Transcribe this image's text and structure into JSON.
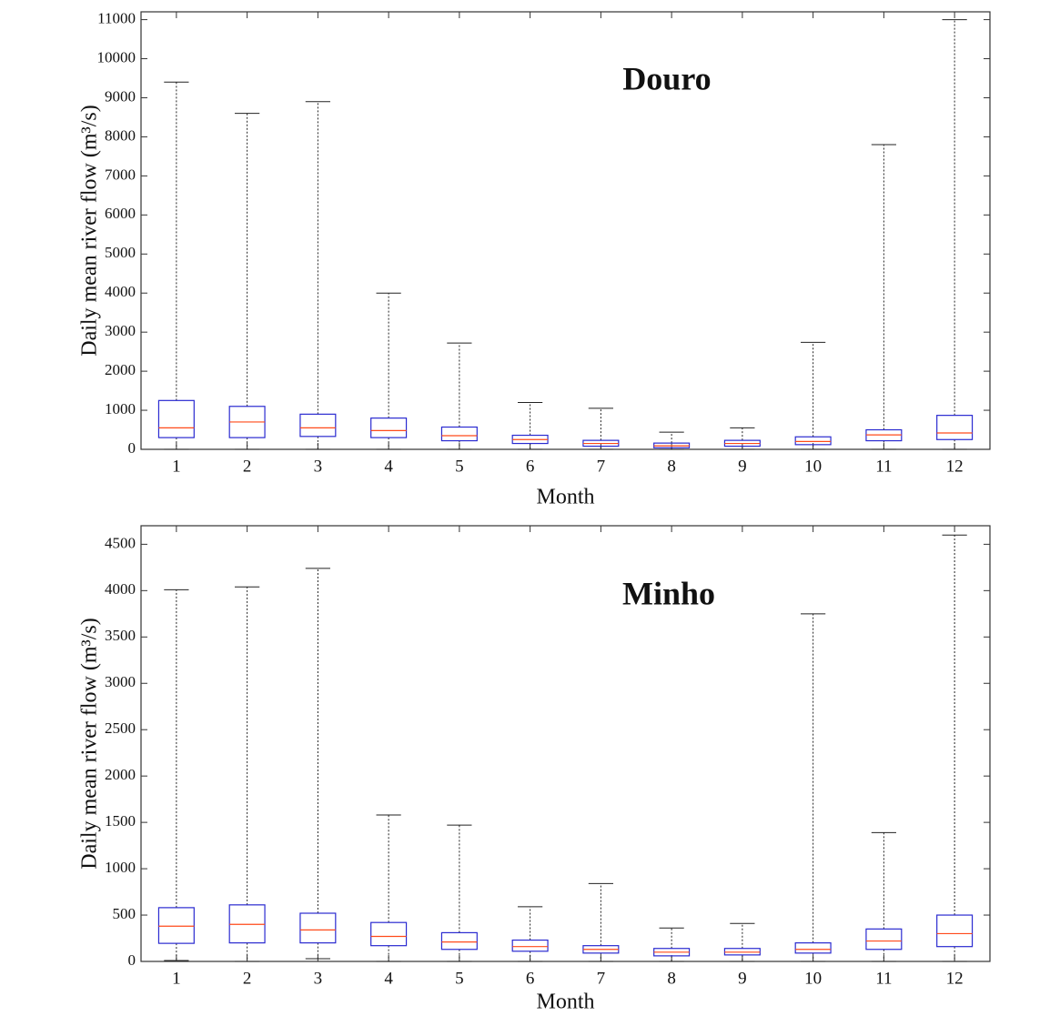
{
  "chart_data": [
    {
      "type": "box",
      "title": "Douro",
      "x_label": "Month",
      "y_label": "Daily mean river flow (m³/s)",
      "categories": [
        "1",
        "2",
        "3",
        "4",
        "5",
        "6",
        "7",
        "8",
        "9",
        "10",
        "11",
        "12"
      ],
      "min": [
        0,
        0,
        0,
        0,
        0,
        0,
        0,
        0,
        0,
        0,
        0,
        0
      ],
      "q1": [
        300,
        300,
        330,
        300,
        220,
        150,
        80,
        40,
        80,
        120,
        220,
        250
      ],
      "median": [
        550,
        700,
        550,
        480,
        350,
        250,
        150,
        90,
        150,
        200,
        370,
        420
      ],
      "q3": [
        1250,
        1100,
        900,
        800,
        570,
        360,
        230,
        160,
        230,
        320,
        500,
        870
      ],
      "max": [
        9400,
        8600,
        8900,
        4000,
        2720,
        1200,
        1050,
        440,
        550,
        2740,
        7800,
        11000
      ],
      "ylim": [
        0,
        11200
      ],
      "yticks": [
        0,
        1000,
        2000,
        3000,
        4000,
        5000,
        6000,
        7000,
        8000,
        9000,
        10000,
        11000
      ],
      "box_color": "#2a2ad0",
      "median_color": "#ff4a1a",
      "whisker_color": "#222222"
    },
    {
      "type": "box",
      "title": "Minho",
      "x_label": "Month",
      "y_label": "Daily mean river flow (m³/s)",
      "categories": [
        "1",
        "2",
        "3",
        "4",
        "5",
        "6",
        "7",
        "8",
        "9",
        "10",
        "11",
        "12"
      ],
      "min": [
        10,
        0,
        30,
        0,
        0,
        0,
        0,
        0,
        0,
        0,
        0,
        0
      ],
      "q1": [
        195,
        200,
        200,
        170,
        130,
        110,
        90,
        60,
        70,
        90,
        130,
        160
      ],
      "median": [
        380,
        400,
        340,
        270,
        210,
        160,
        130,
        100,
        100,
        130,
        220,
        300
      ],
      "q3": [
        580,
        610,
        520,
        420,
        310,
        230,
        170,
        140,
        140,
        200,
        350,
        500
      ],
      "max": [
        4010,
        4040,
        4240,
        1580,
        1470,
        590,
        840,
        360,
        410,
        3750,
        1390,
        4600
      ],
      "ylim": [
        0,
        4700
      ],
      "yticks": [
        0,
        500,
        1000,
        1500,
        2000,
        2500,
        3000,
        3500,
        4000,
        4500
      ],
      "box_color": "#2a2ad0",
      "median_color": "#ff4a1a",
      "whisker_color": "#222222"
    }
  ]
}
